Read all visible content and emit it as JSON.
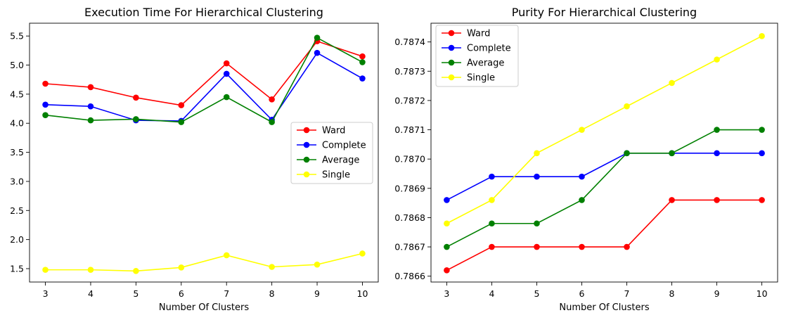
{
  "chart_data": [
    {
      "type": "line",
      "title": "Execution Time For Hierarchical Clustering",
      "xlabel": "Number Of Clusters",
      "ylabel": "",
      "x": [
        3,
        4,
        5,
        6,
        7,
        8,
        9,
        10
      ],
      "xticks": [
        "3",
        "4",
        "5",
        "6",
        "7",
        "8",
        "9",
        "10"
      ],
      "xlim": [
        2.65,
        10.35
      ],
      "ylim": [
        1.27,
        5.72
      ],
      "yticks": [
        "1.5",
        "2.0",
        "2.5",
        "3.0",
        "3.5",
        "4.0",
        "4.5",
        "5.0",
        "5.5"
      ],
      "legend_position": "center-right",
      "grid": false,
      "series": [
        {
          "name": "Ward",
          "color": "#ff0000",
          "values": [
            4.68,
            4.62,
            4.44,
            4.31,
            5.03,
            4.41,
            5.41,
            5.15
          ]
        },
        {
          "name": "Complete",
          "color": "#0000ff",
          "values": [
            4.32,
            4.29,
            4.05,
            4.04,
            4.85,
            4.06,
            5.21,
            4.77
          ]
        },
        {
          "name": "Average",
          "color": "#008000",
          "values": [
            4.14,
            4.05,
            4.07,
            4.02,
            4.45,
            4.02,
            5.47,
            5.05
          ]
        },
        {
          "name": "Single",
          "color": "#ffff00",
          "values": [
            1.48,
            1.48,
            1.46,
            1.52,
            1.73,
            1.53,
            1.57,
            1.76
          ]
        }
      ]
    },
    {
      "type": "line",
      "title": "Purity For Hierarchical Clustering",
      "xlabel": "Number Of Clusters",
      "ylabel": "",
      "x": [
        3,
        4,
        5,
        6,
        7,
        8,
        9,
        10
      ],
      "xticks": [
        "3",
        "4",
        "5",
        "6",
        "7",
        "8",
        "9",
        "10"
      ],
      "xlim": [
        2.65,
        10.35
      ],
      "ylim": [
        0.78658,
        0.787464
      ],
      "yticks": [
        "0.7866",
        "0.7867",
        "0.7868",
        "0.7869",
        "0.7870",
        "0.7871",
        "0.7872",
        "0.7873",
        "0.7874"
      ],
      "legend_position": "top-left",
      "grid": false,
      "series": [
        {
          "name": "Ward",
          "color": "#ff0000",
          "values": [
            0.78662,
            0.7867,
            0.7867,
            0.7867,
            0.7867,
            0.78686,
            0.78686,
            0.78686
          ]
        },
        {
          "name": "Complete",
          "color": "#0000ff",
          "values": [
            0.78686,
            0.78694,
            0.78694,
            0.78694,
            0.78702,
            0.78702,
            0.78702,
            0.78702
          ]
        },
        {
          "name": "Average",
          "color": "#008000",
          "values": [
            0.7867,
            0.78678,
            0.78678,
            0.78686,
            0.78702,
            0.78702,
            0.7871,
            0.7871
          ]
        },
        {
          "name": "Single",
          "color": "#ffff00",
          "values": [
            0.78678,
            0.78686,
            0.78702,
            0.7871,
            0.78718,
            0.78726,
            0.78734,
            0.78742
          ]
        }
      ]
    }
  ]
}
